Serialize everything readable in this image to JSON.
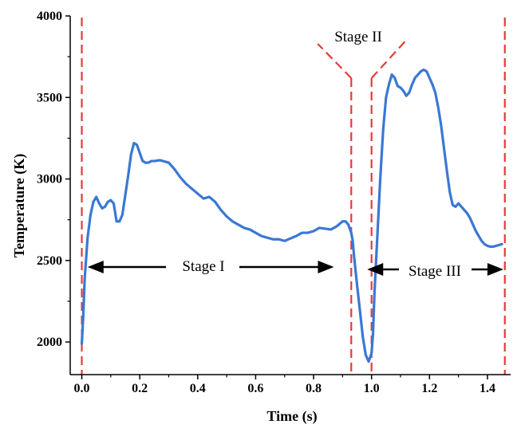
{
  "chart_data": {
    "type": "line",
    "title": "",
    "xlabel": "Time (s)",
    "ylabel": "Temperature (K)",
    "xlim": [
      -0.04,
      1.48
    ],
    "ylim": [
      1800,
      4000
    ],
    "xticks": [
      "0.0",
      "0.2",
      "0.4",
      "0.6",
      "0.8",
      "1.0",
      "1.2",
      "1.4"
    ],
    "yticks": [
      "2000",
      "2500",
      "3000",
      "3500",
      "4000"
    ],
    "grid": false,
    "legend": "none",
    "series_color": "#3a78d4",
    "boundary_color": "#e8393b",
    "stage_boundaries": [
      0.0,
      0.93,
      1.0,
      1.46
    ],
    "stage_labels": {
      "stage1": "Stage I",
      "stage2": "Stage II",
      "stage3": "Stage III"
    },
    "series": [
      {
        "x": [
          0.0,
          0.005,
          0.01,
          0.02,
          0.03,
          0.04,
          0.05,
          0.06,
          0.07,
          0.08,
          0.09,
          0.1,
          0.11,
          0.12,
          0.13,
          0.14,
          0.15,
          0.16,
          0.17,
          0.18,
          0.19,
          0.2,
          0.21,
          0.22,
          0.23,
          0.24,
          0.25,
          0.27,
          0.3,
          0.32,
          0.34,
          0.36,
          0.38,
          0.4,
          0.42,
          0.44,
          0.46,
          0.48,
          0.5,
          0.52,
          0.54,
          0.56,
          0.58,
          0.6,
          0.62,
          0.64,
          0.66,
          0.68,
          0.7,
          0.72,
          0.74,
          0.76,
          0.78,
          0.8,
          0.82,
          0.84,
          0.86,
          0.88,
          0.9,
          0.91,
          0.92,
          0.93,
          0.935,
          0.94,
          0.95,
          0.96,
          0.97,
          0.98,
          0.99,
          1.0,
          1.005,
          1.01,
          1.02,
          1.03,
          1.04,
          1.05,
          1.06,
          1.07,
          1.08,
          1.09,
          1.1,
          1.11,
          1.12,
          1.13,
          1.14,
          1.15,
          1.16,
          1.17,
          1.18,
          1.19,
          1.2,
          1.21,
          1.22,
          1.23,
          1.24,
          1.25,
          1.26,
          1.27,
          1.28,
          1.29,
          1.3,
          1.31,
          1.32,
          1.33,
          1.34,
          1.35,
          1.36,
          1.37,
          1.38,
          1.39,
          1.4,
          1.41,
          1.42,
          1.43,
          1.44,
          1.45
        ],
        "y": [
          1990,
          2160,
          2390,
          2640,
          2780,
          2860,
          2890,
          2850,
          2820,
          2830,
          2860,
          2870,
          2850,
          2740,
          2740,
          2780,
          2900,
          3020,
          3150,
          3220,
          3210,
          3160,
          3110,
          3100,
          3100,
          3110,
          3110,
          3115,
          3100,
          3060,
          3010,
          2970,
          2940,
          2910,
          2880,
          2890,
          2860,
          2810,
          2770,
          2740,
          2720,
          2700,
          2690,
          2670,
          2650,
          2640,
          2630,
          2630,
          2620,
          2635,
          2650,
          2670,
          2670,
          2680,
          2700,
          2695,
          2690,
          2710,
          2740,
          2740,
          2720,
          2670,
          2620,
          2520,
          2350,
          2190,
          2030,
          1920,
          1880,
          1930,
          2050,
          2300,
          2650,
          3000,
          3300,
          3500,
          3580,
          3640,
          3620,
          3570,
          3560,
          3540,
          3510,
          3530,
          3580,
          3620,
          3640,
          3660,
          3670,
          3660,
          3620,
          3580,
          3530,
          3440,
          3330,
          3190,
          3050,
          2920,
          2840,
          2830,
          2850,
          2830,
          2810,
          2790,
          2760,
          2720,
          2680,
          2650,
          2620,
          2600,
          2590,
          2585,
          2585,
          2590,
          2595,
          2600
        ]
      }
    ]
  }
}
